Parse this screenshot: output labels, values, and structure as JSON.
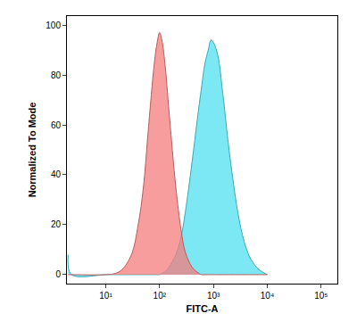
{
  "chart_data": {
    "type": "area",
    "x_label": "FITC-A",
    "y_label": "Normalized To Mode",
    "log": "x",
    "grid": false,
    "x": [
      2,
      2.3,
      10,
      15,
      20,
      30,
      40,
      50,
      60,
      70,
      80,
      90,
      100,
      110,
      125,
      150,
      200,
      250,
      300,
      400,
      500,
      600,
      700,
      800,
      900,
      1000,
      1200,
      1500,
      2000,
      3000,
      4000,
      5000,
      7000,
      10000
    ],
    "series": [
      {
        "color": "#4fe0f0",
        "values": [
          8,
          0,
          0,
          0,
          0,
          0,
          0,
          0,
          0,
          0,
          0,
          0,
          0,
          0.5,
          1,
          3,
          8,
          15,
          25,
          45,
          62,
          75,
          85,
          90,
          94,
          93,
          88,
          72,
          48,
          22,
          11,
          6,
          2,
          0
        ]
      },
      {
        "color": "#f47c7c",
        "values": [
          0,
          0,
          0,
          0.5,
          2,
          8,
          20,
          35,
          55,
          72,
          85,
          93,
          97,
          94,
          85,
          65,
          35,
          18,
          9,
          3,
          1,
          0,
          0,
          0,
          0,
          0,
          0,
          0,
          0,
          0,
          0,
          0,
          0,
          0
        ]
      }
    ],
    "xlim": [
      1.9,
      200000
    ],
    "xticks": [
      {
        "value": 10,
        "label": "10¹"
      },
      {
        "value": 100,
        "label": "10²"
      },
      {
        "value": 1000,
        "label": "10³"
      },
      {
        "value": 10000,
        "label": "10⁴"
      },
      {
        "value": 100000,
        "label": "10⁵"
      }
    ],
    "ylim": [
      -3.6,
      103.6
    ],
    "yticks": [
      0,
      20,
      40,
      60,
      80,
      100
    ]
  }
}
